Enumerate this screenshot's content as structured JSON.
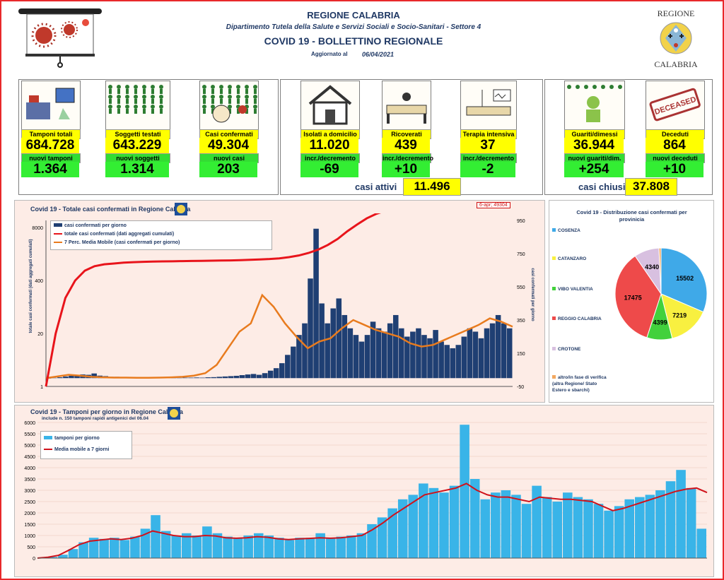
{
  "header": {
    "region": "REGIONE CALABRIA",
    "department": "Dipartimento Tutela della Salute e Servizi Sociali e Socio-Sanitari - Settore 4",
    "title": "COVID 19 - BOLLETTINO REGIONALE",
    "updated_label": "Aggiornato al",
    "updated_date": "06/04/2021",
    "logo_text_top": "REGIONE",
    "logo_text_bottom": "CALABRIA"
  },
  "cards": [
    {
      "label": "Tamponi totali",
      "value": "684.728",
      "sub_label": "nuovi tamponi",
      "sub_value": "1.364",
      "icon": "lab-equipment-icon"
    },
    {
      "label": "Soggetti testati",
      "value": "643.229",
      "sub_label": "nuovi soggetti testati",
      "sub_value": "1.314",
      "icon": "people-grid-icon"
    },
    {
      "label": "Casi confermati",
      "value": "49.304",
      "sub_label": "nuovi casi",
      "sub_value": "203",
      "icon": "virus-person-icon"
    },
    {
      "label": "Isolati a domicilio",
      "value": "11.020",
      "sub_label": "incr./decremento",
      "sub_value": "-69",
      "icon": "house-icon"
    },
    {
      "label": "Ricoverati",
      "value": "439",
      "sub_label": "incr./decremento",
      "sub_value": "+10",
      "icon": "hospital-bed-icon"
    },
    {
      "label": "Terapia intensiva",
      "value": "37",
      "sub_label": "incr./decremento",
      "sub_value": "-2",
      "icon": "icu-bed-icon"
    },
    {
      "label": "Guariti/dimessi",
      "value": "36.944",
      "sub_label": "nuovi guariti/dim.",
      "sub_value": "+254",
      "icon": "recovered-person-icon"
    },
    {
      "label": "Deceduti",
      "value": "864",
      "sub_label": "nuovi deceduti",
      "sub_value": "+10",
      "icon": "deceased-stamp-icon"
    }
  ],
  "deceased_stamp": "DECEASED",
  "summary": {
    "attivi_label": "casi attivi",
    "attivi_value": "11.496",
    "chiusi_label": "casi chiusi",
    "chiusi_value": "37.808"
  },
  "chart1": {
    "title": "Covid 19 - Totale casi confermati in Regione Calabria",
    "ylabel_left": "totale casi confermati (dati aggregati cumulati)",
    "ylabel_right": "casi confermati per giorno",
    "annotation": "6-apr; 49304",
    "legend": [
      "casi confermati per giorno",
      "totale casi confermati (dati aggregati cumulati)",
      "7 Perc. Media Mobile (casi confermati per giorno)"
    ],
    "left_ticks": [
      "8000",
      "400",
      "20",
      "1"
    ],
    "right_ticks": [
      "950",
      "750",
      "550",
      "350",
      "150",
      "-50"
    ],
    "colors": {
      "bars": "#1f3f73",
      "cumulative": "#e8141b",
      "moving_avg": "#e87b1e"
    }
  },
  "chart2": {
    "title": "Covid 19 - Distribuzione casi confermati per provinicia",
    "legend": [
      {
        "name": "COSENZA",
        "color": "#3fa9e8"
      },
      {
        "name": "CATANZARO",
        "color": "#f8f040"
      },
      {
        "name": "VIBO VALENTIA",
        "color": "#42d13c"
      },
      {
        "name": "REGGIO CALABRIA",
        "color": "#ee4a4a"
      },
      {
        "name": "CROTONE",
        "color": "#d8c0e0"
      },
      {
        "name": "altro/in fase di verifica (altra Regione/ Stato Estero e sbarchi)",
        "color": "#f2a860"
      }
    ]
  },
  "chart3": {
    "title": "Covid 19 - Tamponi per giorno in Regione Calabria",
    "subtitle": "include n. 150 tamponi rapidi antigenici del 06.04",
    "legend": [
      "tamponi per giorno",
      "Media mobile a 7 giorni"
    ],
    "y_ticks": [
      "6000",
      "5500",
      "5000",
      "4500",
      "4000",
      "3500",
      "3000",
      "2500",
      "2000",
      "1500",
      "1000",
      "500",
      "0"
    ],
    "colors": {
      "bars": "#39b4e8",
      "moving_avg": "#d0121b"
    }
  },
  "chart_data": [
    {
      "type": "line",
      "title": "Covid 19 - Totale casi confermati in Regione Calabria",
      "ylabel": "totale casi confermati (dati aggregati cumulati)",
      "y2label": "casi confermati per giorno",
      "yscale": "log",
      "ylim": [
        1,
        8000
      ],
      "y2lim": [
        -50,
        950
      ],
      "series": [
        {
          "name": "casi confermati per giorno",
          "kind": "bar",
          "points": [
            0,
            2,
            5,
            10,
            14,
            18,
            22,
            20,
            28,
            15,
            12,
            8,
            8,
            6,
            5,
            4,
            3,
            3,
            2,
            2,
            2,
            3,
            2,
            2,
            3,
            3,
            4,
            3,
            5,
            6,
            8,
            10,
            12,
            14,
            18,
            22,
            25,
            20,
            30,
            45,
            60,
            90,
            140,
            190,
            260,
            330,
            600,
            900,
            450,
            330,
            420,
            480,
            380,
            300,
            260,
            220,
            260,
            340,
            300,
            280,
            330,
            380,
            300,
            250,
            280,
            300,
            260,
            240,
            290,
            220,
            200,
            180,
            200,
            250,
            300,
            280,
            240,
            300,
            330,
            380,
            330,
            300
          ]
        },
        {
          "name": "totale casi confermati (dati aggregati cumulati)",
          "kind": "line",
          "points": [
            1,
            20,
            150,
            400,
            700,
            900,
            1000,
            1050,
            1100,
            1130,
            1150,
            1170,
            1180,
            1190,
            1200,
            1210,
            1220,
            1230,
            1240,
            1250,
            1270,
            1290,
            1320,
            1350,
            1400,
            1500,
            1650,
            1900,
            2300,
            3000,
            4200,
            6500,
            9500,
            13500,
            17500,
            21000,
            24500,
            27000,
            29500,
            32000,
            34000,
            36000,
            38000,
            40000,
            42000,
            44000,
            46000,
            48000,
            49304
          ]
        },
        {
          "name": "7 Perc. Media Mobile (casi confermati per giorno)",
          "kind": "line",
          "points": [
            0,
            10,
            20,
            15,
            8,
            5,
            3,
            3,
            2,
            2,
            3,
            5,
            8,
            15,
            30,
            80,
            180,
            280,
            330,
            500,
            430,
            330,
            250,
            180,
            220,
            240,
            300,
            350,
            320,
            290,
            270,
            250,
            210,
            190,
            200,
            230,
            260,
            290,
            320,
            360,
            340,
            310
          ]
        }
      ]
    },
    {
      "type": "pie",
      "title": "Covid 19 - Distribuzione casi confermati per provinicia",
      "categories": [
        "COSENZA",
        "CATANZARO",
        "VIBO VALENTIA",
        "REGGIO CALABRIA",
        "CROTONE",
        "altro/in fase di verifica (altra Regione/ Stato Estero e sbarchi)"
      ],
      "values": [
        15502,
        7219,
        4399,
        17475,
        4340,
        369
      ]
    },
    {
      "type": "bar",
      "title": "Covid 19 - Tamponi per giorno in Regione Calabria",
      "ylim": [
        0,
        6000
      ],
      "series": [
        {
          "name": "tamponi per giorno",
          "kind": "bar",
          "points": [
            0,
            50,
            150,
            400,
            700,
            900,
            850,
            900,
            800,
            950,
            1300,
            1900,
            1200,
            1000,
            1100,
            1000,
            1400,
            1100,
            950,
            900,
            1000,
            1100,
            1000,
            900,
            800,
            900,
            900,
            1100,
            900,
            950,
            1000,
            1100,
            1500,
            1800,
            2200,
            2600,
            2800,
            3300,
            3100,
            2900,
            3200,
            5900,
            3500,
            2600,
            2900,
            3000,
            2800,
            2400,
            3200,
            2700,
            2500,
            2900,
            2700,
            2600,
            2400,
            2100,
            2300,
            2600,
            2700,
            2800,
            3000,
            3400,
            3900,
            3100,
            1300
          ]
        },
        {
          "name": "Media mobile a 7 giorni",
          "kind": "line",
          "points": [
            0,
            40,
            120,
            350,
            600,
            750,
            800,
            850,
            820,
            880,
            1000,
            1200,
            1100,
            1000,
            950,
            950,
            1000,
            980,
            900,
            880,
            900,
            950,
            920,
            850,
            820,
            850,
            870,
            900,
            880,
            900,
            950,
            1000,
            1250,
            1550,
            1900,
            2200,
            2500,
            2800,
            2900,
            3000,
            3100,
            3300,
            3000,
            2800,
            2700,
            2700,
            2600,
            2500,
            2700,
            2650,
            2600,
            2600,
            2550,
            2500,
            2300,
            2100,
            2200,
            2350,
            2500,
            2650,
            2800,
            2950,
            3050,
            3100,
            2900
          ]
        }
      ]
    }
  ]
}
